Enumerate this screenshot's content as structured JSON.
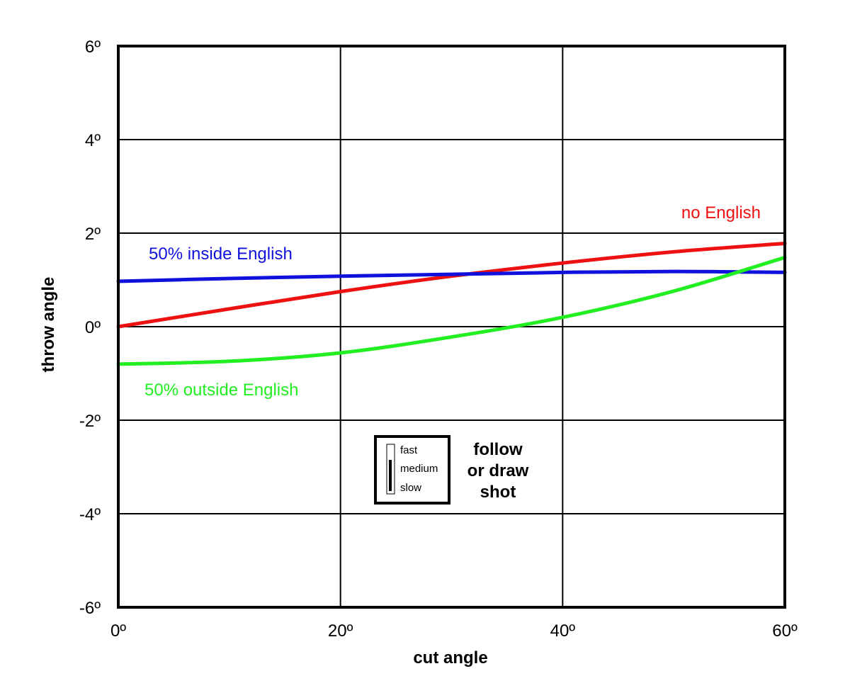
{
  "chart_data": {
    "type": "line",
    "xlabel": "cut angle",
    "ylabel": "throw angle",
    "xlim": [
      0,
      60
    ],
    "ylim": [
      -6,
      6
    ],
    "x_ticks": [
      {
        "value": 0,
        "label": "0º"
      },
      {
        "value": 20,
        "label": "20º"
      },
      {
        "value": 40,
        "label": "40º"
      },
      {
        "value": 60,
        "label": "60º"
      }
    ],
    "y_ticks": [
      {
        "value": 6,
        "label": "6º"
      },
      {
        "value": 4,
        "label": "4º"
      },
      {
        "value": 2,
        "label": "2º"
      },
      {
        "value": 0,
        "label": "0º"
      },
      {
        "value": -2,
        "label": "-2º"
      },
      {
        "value": -4,
        "label": "-4º"
      },
      {
        "value": -6,
        "label": "-6º"
      }
    ],
    "grid": true,
    "series": [
      {
        "name": "no English",
        "color": "#ee1111",
        "x": [
          0,
          10,
          20,
          30,
          40,
          50,
          60
        ],
        "y": [
          0.0,
          0.38,
          0.75,
          1.08,
          1.36,
          1.6,
          1.78
        ]
      },
      {
        "name": "50% inside English",
        "color": "#1111dd",
        "x": [
          0,
          10,
          20,
          30,
          40,
          50,
          60
        ],
        "y": [
          0.97,
          1.03,
          1.08,
          1.12,
          1.16,
          1.18,
          1.16
        ]
      },
      {
        "name": "50% outside English",
        "color": "#22ee22",
        "x": [
          0,
          10,
          20,
          30,
          40,
          50,
          60
        ],
        "y": [
          -0.8,
          -0.74,
          -0.56,
          -0.22,
          0.2,
          0.76,
          1.48
        ]
      }
    ],
    "legend": {
      "speed_labels": [
        "fast",
        "medium",
        "slow"
      ],
      "selected_speed": "medium",
      "shot_type": [
        "follow",
        "or draw",
        "shot"
      ]
    }
  }
}
